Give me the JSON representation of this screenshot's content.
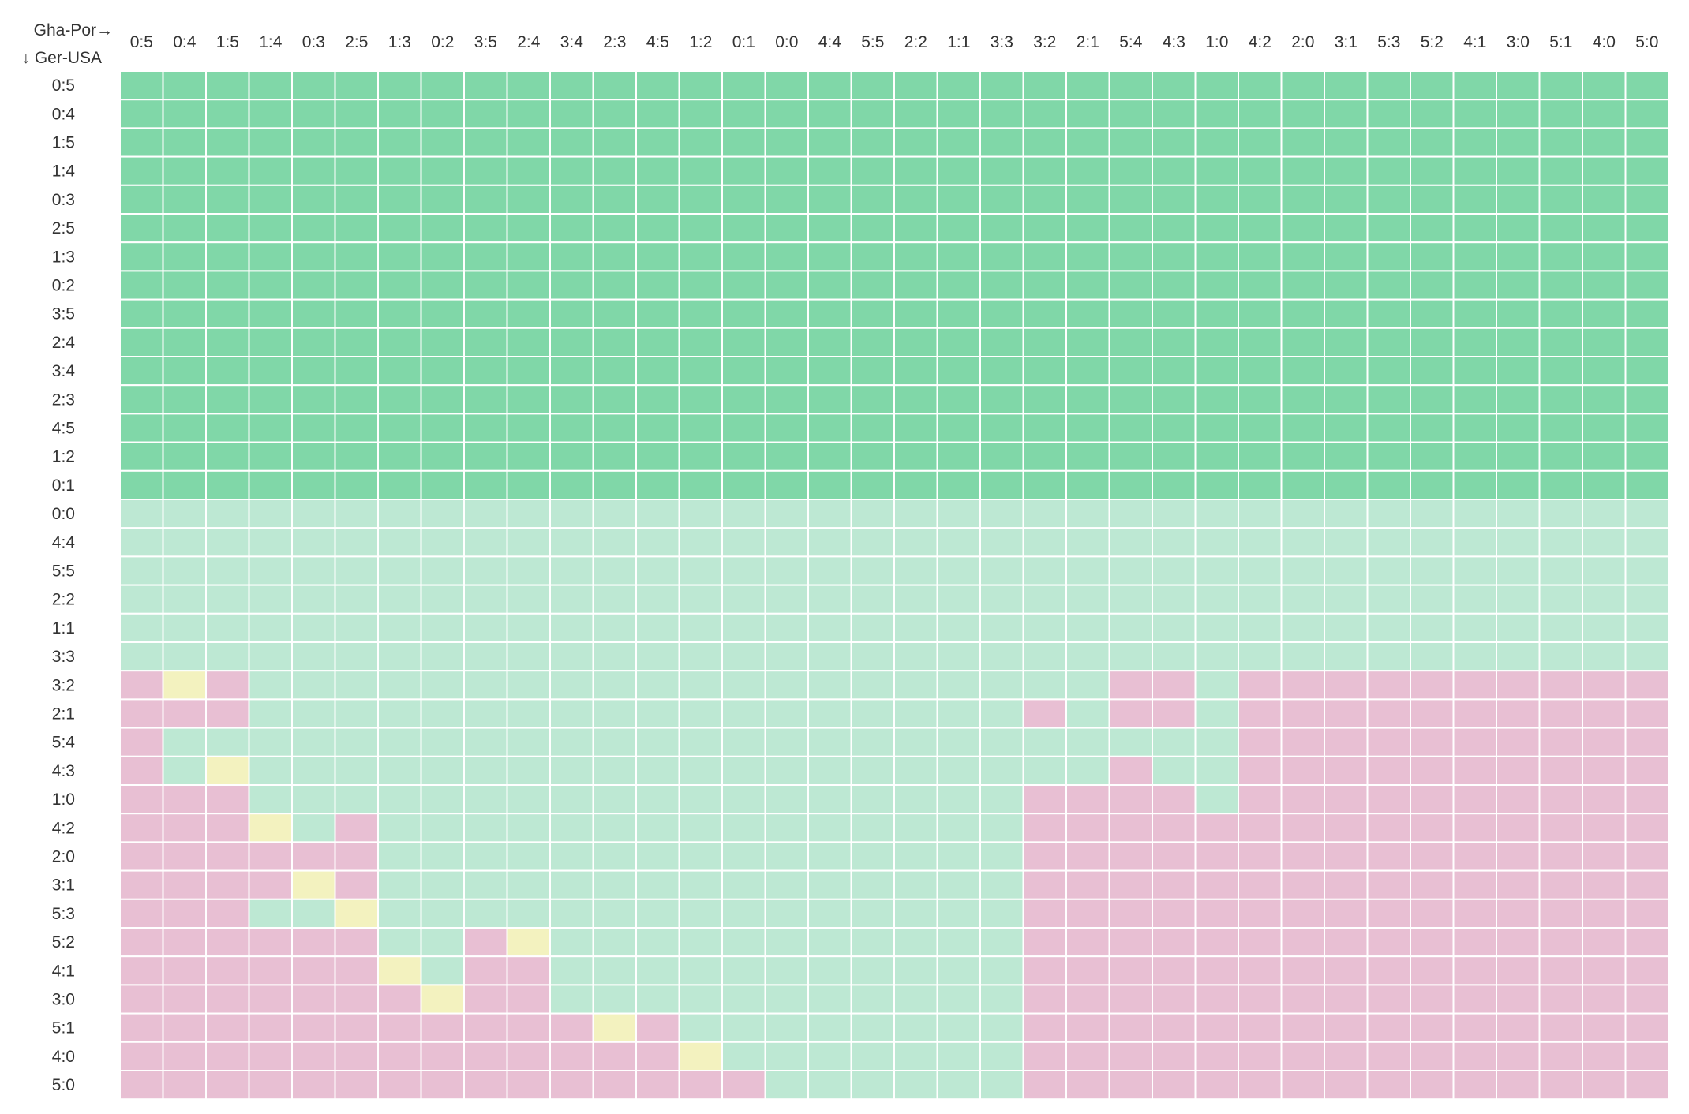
{
  "chart_data": {
    "type": "heatmap",
    "x_axis_title": "Gha-Por→",
    "y_axis_title": "↓ Ger-USA",
    "columns": [
      "0:5",
      "0:4",
      "1:5",
      "1:4",
      "0:3",
      "2:5",
      "1:3",
      "0:2",
      "3:5",
      "2:4",
      "3:4",
      "2:3",
      "4:5",
      "1:2",
      "0:1",
      "0:0",
      "4:4",
      "5:5",
      "2:2",
      "1:1",
      "3:3",
      "3:2",
      "2:1",
      "5:4",
      "4:3",
      "1:0",
      "4:2",
      "2:0",
      "3:1",
      "5:3",
      "5:2",
      "4:1",
      "3:0",
      "5:1",
      "4:0",
      "5:0"
    ],
    "rows": [
      "0:5",
      "0:4",
      "1:5",
      "1:4",
      "0:3",
      "2:5",
      "1:3",
      "0:2",
      "3:5",
      "2:4",
      "3:4",
      "2:3",
      "4:5",
      "1:2",
      "0:1",
      "0:0",
      "4:4",
      "5:5",
      "2:2",
      "1:1",
      "3:3",
      "3:2",
      "2:1",
      "5:4",
      "4:3",
      "1:0",
      "4:2",
      "2:0",
      "3:1",
      "5:3",
      "5:2",
      "4:1",
      "3:0",
      "5:1",
      "4:0",
      "5:0"
    ],
    "cell_legend": {
      "G": "#80d7a8",
      "L": "#bde8d3",
      "P": "#e8bfd3",
      "Y": "#f3f2bf"
    },
    "matrix": [
      "GGGGGGGGGGGGGGGGGGGGGGGGGGGGGGGGGGGG",
      "GGGGGGGGGGGGGGGGGGGGGGGGGGGGGGGGGGGG",
      "GGGGGGGGGGGGGGGGGGGGGGGGGGGGGGGGGGGG",
      "GGGGGGGGGGGGGGGGGGGGGGGGGGGGGGGGGGGG",
      "GGGGGGGGGGGGGGGGGGGGGGGGGGGGGGGGGGGG",
      "GGGGGGGGGGGGGGGGGGGGGGGGGGGGGGGGGGGG",
      "GGGGGGGGGGGGGGGGGGGGGGGGGGGGGGGGGGGG",
      "GGGGGGGGGGGGGGGGGGGGGGGGGGGGGGGGGGGG",
      "GGGGGGGGGGGGGGGGGGGGGGGGGGGGGGGGGGGG",
      "GGGGGGGGGGGGGGGGGGGGGGGGGGGGGGGGGGGG",
      "GGGGGGGGGGGGGGGGGGGGGGGGGGGGGGGGGGGG",
      "GGGGGGGGGGGGGGGGGGGGGGGGGGGGGGGGGGGG",
      "GGGGGGGGGGGGGGGGGGGGGGGGGGGGGGGGGGGG",
      "GGGGGGGGGGGGGGGGGGGGGGGGGGGGGGGGGGGG",
      "GGGGGGGGGGGGGGGGGGGGGGGGGGGGGGGGGGGG",
      "LLLLLLLLLLLLLLLLLLLLLLLLLLLLLLLLLLLL",
      "LLLLLLLLLLLLLLLLLLLLLLLLLLLLLLLLLLLL",
      "LLLLLLLLLLLLLLLLLLLLLLLLLLLLLLLLLLLL",
      "LLLLLLLLLLLLLLLLLLLLLLLLLLLLLLLLLLLL",
      "LLLLLLLLLLLLLLLLLLLLLLLLLLLLLLLLLLLL",
      "LLLLLLLLLLLLLLLLLLLLLLLLLLLLLLLLLLLL",
      "PYPLLLLLLLLLLLLLLLLLLLLPPLPPPPPPPPPP",
      "PPPLLLLLLLLLLLLLLLLLLPLPPLPPPPPPPPPP",
      "PLLLLLLLLLLLLLLLLLLLLLLLLLPPPPPPPPPP",
      "PLYLLLLLLLLLLLLLLLLLLLLPLLPPPPPPPPPP",
      "PPPLLLLLLLLLLLLLLLLLLPPPPLPPPPPPPPPP",
      "PPPYLPLLLLLLLLLLLLLLLPPPPPPPPPPPPPPP",
      "PPPPPPLLLLLLLLLLLLLLLPPPPPPPPPPPPPPP",
      "PPPPYPLLLLLLLLLLLLLLLPPPPPPPPPPPPPPP",
      "PPPLLYLLLLLLLLLLLLLLLPPPPPPPPPPPPPPP",
      "PPPPPPLLPYLLLLLLLLLLLPPPPPPPPPPPPPPP",
      "PPPPPPYLPPLLLLLLLLLLLPPPPPPPPPPPPPPP",
      "PPPPPPPYPPLLLLLLLLLLLPPPPPPPPPPPPPPP",
      "PPPPPPPPPPPYPLLLLLLLLPPPPPPPPPPPPPPP",
      "PPPPPPPPPPPPPYLLLLLLLPPPPPPPPPPPPPPP",
      "PPPPPPPPPPPPPPPLLLLLLPPPPPPPPPPPPPPP"
    ]
  }
}
